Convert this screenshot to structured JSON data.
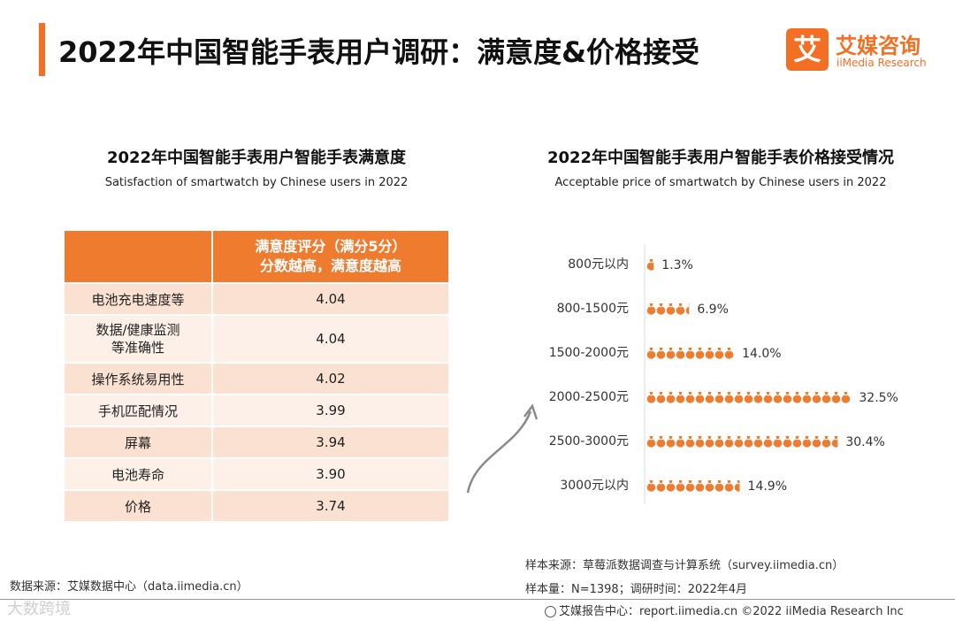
{
  "header": {
    "title": "2022年中国智能手表用户调研：满意度&价格接受",
    "logo_mark": "艾",
    "logo_cn": "艾媒咨询",
    "logo_en": "iiMedia Research"
  },
  "left": {
    "title": "2022年中国智能手表用户智能手表满意度",
    "subtitle": "Satisfaction of smartwatch by Chinese users in 2022",
    "table_header": [
      "满意度评分（满分5分）",
      "分数越高，满意度越高"
    ],
    "rows": [
      {
        "label": "电池充电速度等",
        "value": "4.04"
      },
      {
        "label": "数据/健康监测等准确性",
        "value": "4.04"
      },
      {
        "label": "操作系统易用性",
        "value": "4.02"
      },
      {
        "label": "手机匹配情况",
        "value": "3.99"
      },
      {
        "label": "屏幕",
        "value": "3.94"
      },
      {
        "label": "电池寿命",
        "value": "3.90"
      },
      {
        "label": "价格",
        "value": "3.74"
      }
    ]
  },
  "right": {
    "title": "2022年中国智能手表用户智能手表价格接受情况",
    "subtitle": "Acceptable price of smartwatch by Chinese users in 2022"
  },
  "chart_data": {
    "type": "bar",
    "orientation": "horizontal",
    "title": "2022年中国智能手表用户智能手表价格接受情况",
    "subtitle": "Acceptable price of smartwatch by Chinese users in 2022",
    "categories": [
      "800元以内",
      "800-1500元",
      "1500-2000元",
      "2000-2500元",
      "2500-3000元",
      "3000元以内"
    ],
    "values": [
      1.3,
      6.9,
      14.0,
      32.5,
      30.4,
      14.9
    ],
    "labels": [
      "1.3%",
      "6.9%",
      "14.0%",
      "32.5%",
      "30.4%",
      "14.9%"
    ],
    "unit": "%",
    "xlabel": "",
    "ylabel": ""
  },
  "colors": {
    "accent": "#f36f24",
    "bar": "#ef7b2f",
    "row_a": "#fbe1d2",
    "row_b": "#fdf0e8"
  },
  "footer": {
    "source_left": "数据来源：艾媒数据中心（data.iimedia.cn）",
    "sample_source": "样本来源：草莓派数据调查与计算系统（survey.iimedia.cn）",
    "sample_size": "样本量：N=1398；调研时间：2022年4月",
    "report_center": "艾媒报告中心：report.iimedia.cn  ©2022 iiMedia Research Inc",
    "watermark": "大数跨境"
  }
}
